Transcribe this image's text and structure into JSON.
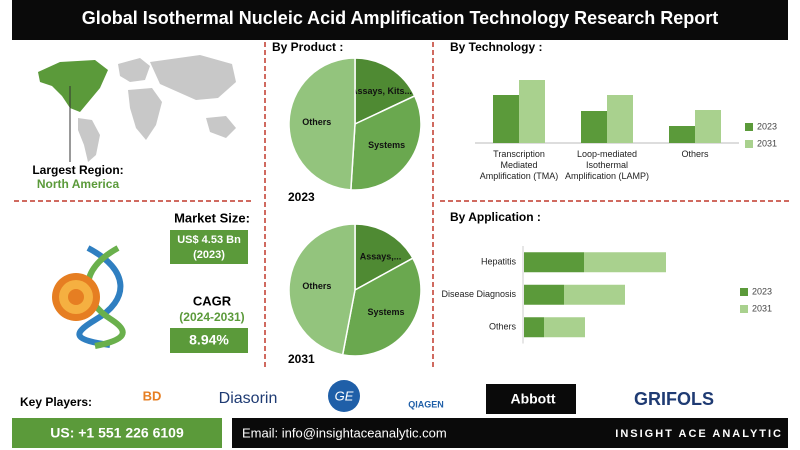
{
  "header": {
    "title": "Global Isothermal Nucleic Acid Amplification Technology Research Report"
  },
  "region": {
    "label": "Largest Region:",
    "value": "North America"
  },
  "market_size": {
    "label": "Market Size:",
    "value": "US$ 4.53 Bn",
    "year": "(2023)"
  },
  "cagr": {
    "label": "CAGR",
    "period": "(2024-2031)",
    "value": "8.94%"
  },
  "chart_data": [
    {
      "type": "pie",
      "title": "By Product :",
      "subtitle": "2023",
      "categories": [
        "Assays, Kits...",
        "Systems",
        "Others"
      ],
      "values": [
        18,
        33,
        49
      ],
      "colors": [
        "#4f8a33",
        "#6aa84f",
        "#93c47d"
      ]
    },
    {
      "type": "pie",
      "subtitle": "2031",
      "categories": [
        "Assays,...",
        "Systems",
        "Others"
      ],
      "values": [
        17,
        36,
        47
      ],
      "colors": [
        "#4f8a33",
        "#6aa84f",
        "#93c47d"
      ]
    },
    {
      "type": "bar",
      "title": "By  Technology :",
      "categories": [
        "Transcription Mediated Amplification (TMA)",
        "Loop-mediated Isothermal Amplification (LAMP)",
        "Others"
      ],
      "series": [
        {
          "name": "2023",
          "color": "#5b9a3a",
          "values": [
            48,
            32,
            17
          ]
        },
        {
          "name": "2031",
          "color": "#a9d18e",
          "values": [
            63,
            48,
            33
          ]
        }
      ]
    },
    {
      "type": "barh",
      "title": "By Application :",
      "stacked": true,
      "categories": [
        "Hepatitis",
        "Disease Diagnosis",
        "Others"
      ],
      "series": [
        {
          "name": "2023",
          "color": "#5b9a3a",
          "values": [
            60,
            40,
            20
          ]
        },
        {
          "name": "2031",
          "color": "#a9d18e",
          "values": [
            82,
            61,
            41
          ]
        }
      ]
    }
  ],
  "key_players": {
    "label": "Key Players:",
    "logos": [
      "BD",
      "Diasorin",
      "GE",
      "QIAGEN",
      "Abbott",
      "GRIFOLS"
    ]
  },
  "footer": {
    "phone": "US: +1 551 226 6109",
    "email": "Email: info@insightaceanalytic.com",
    "brand": "INSIGHT ACE ANALYTIC"
  }
}
